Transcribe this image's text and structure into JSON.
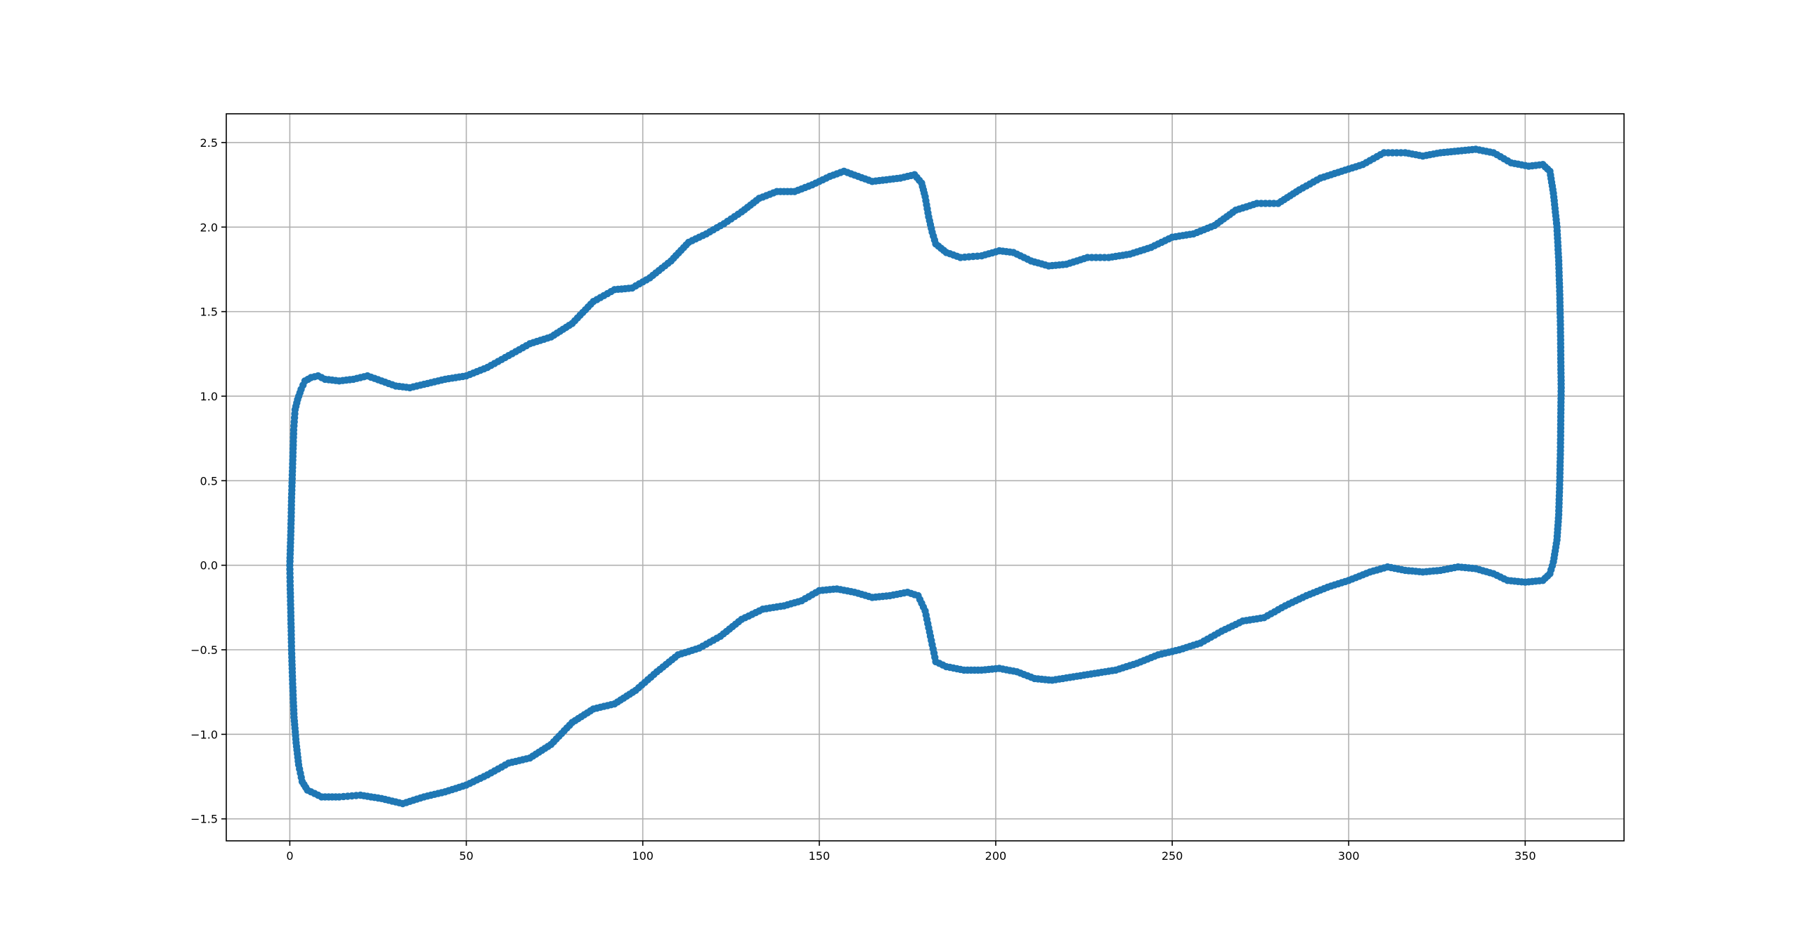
{
  "chart_data": {
    "type": "scatter",
    "title": "",
    "xlabel": "",
    "ylabel": "",
    "xlim": [
      -18,
      378
    ],
    "ylim": [
      -1.63,
      2.67
    ],
    "grid": true,
    "x_ticks": [
      0,
      50,
      100,
      150,
      200,
      250,
      300,
      350
    ],
    "x_tick_labels": [
      "0",
      "50",
      "100",
      "150",
      "200",
      "250",
      "300",
      "350"
    ],
    "y_ticks": [
      -1.5,
      -1.0,
      -0.5,
      0.0,
      0.5,
      1.0,
      1.5,
      2.0,
      2.5
    ],
    "y_tick_labels": [
      "−1.5",
      "−1.0",
      "−0.5",
      "0.0",
      "0.5",
      "1.0",
      "1.5",
      "2.0",
      "2.5"
    ],
    "colors": {
      "series": "#1f77b4",
      "grid": "#b0b0b0",
      "axes": "#000000"
    },
    "series": [
      {
        "marker": "circle",
        "line": true,
        "points": [
          [
            0,
            0.0
          ],
          [
            0.3,
            0.2
          ],
          [
            0.5,
            0.4
          ],
          [
            0.8,
            0.6
          ],
          [
            1.1,
            0.8
          ],
          [
            1.5,
            0.92
          ],
          [
            2.2,
            0.98
          ],
          [
            3.2,
            1.04
          ],
          [
            4.3,
            1.09
          ],
          [
            6,
            1.11
          ],
          [
            8,
            1.12
          ],
          [
            10,
            1.1
          ],
          [
            14,
            1.09
          ],
          [
            18,
            1.1
          ],
          [
            22,
            1.12
          ],
          [
            26,
            1.09
          ],
          [
            30,
            1.06
          ],
          [
            34,
            1.05
          ],
          [
            38,
            1.07
          ],
          [
            44,
            1.1
          ],
          [
            50,
            1.12
          ],
          [
            56,
            1.17
          ],
          [
            62,
            1.24
          ],
          [
            68,
            1.31
          ],
          [
            74,
            1.35
          ],
          [
            80,
            1.43
          ],
          [
            86,
            1.56
          ],
          [
            92,
            1.63
          ],
          [
            97,
            1.64
          ],
          [
            102,
            1.7
          ],
          [
            108,
            1.8
          ],
          [
            113,
            1.91
          ],
          [
            118,
            1.96
          ],
          [
            123,
            2.02
          ],
          [
            128,
            2.09
          ],
          [
            133,
            2.17
          ],
          [
            138,
            2.21
          ],
          [
            143,
            2.21
          ],
          [
            148,
            2.25
          ],
          [
            153,
            2.3
          ],
          [
            157,
            2.33
          ],
          [
            161,
            2.3
          ],
          [
            165,
            2.27
          ],
          [
            169,
            2.28
          ],
          [
            173,
            2.29
          ],
          [
            177,
            2.31
          ],
          [
            179,
            2.26
          ],
          [
            180,
            2.18
          ],
          [
            181,
            2.06
          ],
          [
            182,
            1.97
          ],
          [
            183,
            1.9
          ],
          [
            186,
            1.85
          ],
          [
            190,
            1.82
          ],
          [
            196,
            1.83
          ],
          [
            201,
            1.86
          ],
          [
            205,
            1.85
          ],
          [
            210,
            1.8
          ],
          [
            215,
            1.77
          ],
          [
            220,
            1.78
          ],
          [
            226,
            1.82
          ],
          [
            232,
            1.82
          ],
          [
            238,
            1.84
          ],
          [
            244,
            1.88
          ],
          [
            250,
            1.94
          ],
          [
            256,
            1.96
          ],
          [
            262,
            2.01
          ],
          [
            268,
            2.1
          ],
          [
            274,
            2.14
          ],
          [
            280,
            2.14
          ],
          [
            286,
            2.22
          ],
          [
            292,
            2.29
          ],
          [
            298,
            2.33
          ],
          [
            304,
            2.37
          ],
          [
            310,
            2.44
          ],
          [
            316,
            2.44
          ],
          [
            321,
            2.42
          ],
          [
            326,
            2.44
          ],
          [
            331,
            2.45
          ],
          [
            336,
            2.46
          ],
          [
            341,
            2.44
          ],
          [
            346,
            2.38
          ],
          [
            351,
            2.36
          ],
          [
            355,
            2.37
          ],
          [
            357,
            2.33
          ],
          [
            358,
            2.2
          ],
          [
            359,
            2.0
          ],
          [
            359.5,
            1.8
          ],
          [
            359.8,
            1.6
          ],
          [
            360,
            1.4
          ],
          [
            360.1,
            1.2
          ],
          [
            360.2,
            1.05
          ],
          [
            360.1,
            0.9
          ],
          [
            360,
            0.7
          ],
          [
            359.8,
            0.5
          ],
          [
            359.5,
            0.3
          ],
          [
            359,
            0.15
          ],
          [
            358,
            0.02
          ],
          [
            357,
            -0.05
          ],
          [
            355,
            -0.09
          ],
          [
            350,
            -0.1
          ],
          [
            345,
            -0.09
          ],
          [
            341,
            -0.05
          ],
          [
            336,
            -0.02
          ],
          [
            331,
            -0.01
          ],
          [
            326,
            -0.03
          ],
          [
            321,
            -0.04
          ],
          [
            316,
            -0.03
          ],
          [
            311,
            -0.01
          ],
          [
            306,
            -0.04
          ],
          [
            300,
            -0.09
          ],
          [
            294,
            -0.13
          ],
          [
            288,
            -0.18
          ],
          [
            282,
            -0.24
          ],
          [
            276,
            -0.31
          ],
          [
            270,
            -0.33
          ],
          [
            264,
            -0.39
          ],
          [
            258,
            -0.46
          ],
          [
            252,
            -0.5
          ],
          [
            246,
            -0.53
          ],
          [
            240,
            -0.58
          ],
          [
            234,
            -0.62
          ],
          [
            228,
            -0.64
          ],
          [
            222,
            -0.66
          ],
          [
            216,
            -0.68
          ],
          [
            211,
            -0.67
          ],
          [
            206,
            -0.63
          ],
          [
            201,
            -0.61
          ],
          [
            196,
            -0.62
          ],
          [
            191,
            -0.62
          ],
          [
            186,
            -0.6
          ],
          [
            183,
            -0.57
          ],
          [
            182,
            -0.47
          ],
          [
            181,
            -0.37
          ],
          [
            180,
            -0.27
          ],
          [
            178,
            -0.18
          ],
          [
            175,
            -0.16
          ],
          [
            170,
            -0.18
          ],
          [
            165,
            -0.19
          ],
          [
            160,
            -0.16
          ],
          [
            155,
            -0.14
          ],
          [
            150,
            -0.15
          ],
          [
            145,
            -0.21
          ],
          [
            140,
            -0.24
          ],
          [
            134,
            -0.26
          ],
          [
            128,
            -0.32
          ],
          [
            122,
            -0.42
          ],
          [
            116,
            -0.49
          ],
          [
            110,
            -0.53
          ],
          [
            104,
            -0.63
          ],
          [
            98,
            -0.74
          ],
          [
            92,
            -0.82
          ],
          [
            86,
            -0.85
          ],
          [
            80,
            -0.93
          ],
          [
            74,
            -1.06
          ],
          [
            68,
            -1.14
          ],
          [
            62,
            -1.17
          ],
          [
            56,
            -1.24
          ],
          [
            50,
            -1.3
          ],
          [
            44,
            -1.34
          ],
          [
            38,
            -1.37
          ],
          [
            32,
            -1.41
          ],
          [
            26,
            -1.38
          ],
          [
            20,
            -1.36
          ],
          [
            14,
            -1.37
          ],
          [
            9,
            -1.37
          ],
          [
            5,
            -1.33
          ],
          [
            3.5,
            -1.28
          ],
          [
            2.5,
            -1.18
          ],
          [
            1.8,
            -1.05
          ],
          [
            1.2,
            -0.9
          ],
          [
            0.8,
            -0.7
          ],
          [
            0.5,
            -0.5
          ],
          [
            0.3,
            -0.3
          ],
          [
            0.1,
            -0.12
          ],
          [
            0,
            0.0
          ]
        ]
      }
    ]
  }
}
